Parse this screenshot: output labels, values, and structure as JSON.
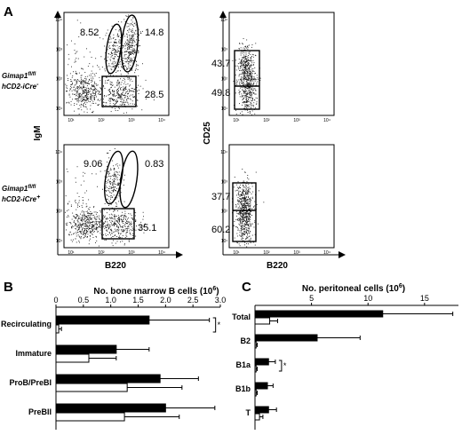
{
  "panel_labels": {
    "A": "A",
    "B": "B",
    "C": "C"
  },
  "genotypes": [
    {
      "line1": "Gimap1",
      "sup": "fl/fl",
      "line2": "hCD2-iCre",
      "sup2": "-"
    },
    {
      "line1": "Gimap1",
      "sup": "fl/fl",
      "line2": "hCD2-iCre",
      "sup2": "+"
    }
  ],
  "flow_axes": {
    "left_y": "IgM",
    "right_y": "CD25",
    "x": "B220"
  },
  "log_ticks": [
    "10¹",
    "10²",
    "10³",
    "10⁴"
  ],
  "flow_panels": [
    {
      "gates": [
        "8.52",
        "14.8",
        "28.5"
      ]
    },
    {
      "gates": [
        "43.7",
        "49.8"
      ]
    },
    {
      "gates": [
        "9.06",
        "0.83",
        "35.1"
      ]
    },
    {
      "gates": [
        "37.7",
        "60.2"
      ]
    }
  ],
  "chart_data": [
    {
      "type": "bar",
      "orientation": "horizontal",
      "title": "No. bone marrow B cells (10⁶)",
      "title_main": "No. bone marrow B cells (10",
      "title_exp": "6",
      "categories": [
        "Recirculating",
        "Immature",
        "ProB/PreBI",
        "PreBII"
      ],
      "xlim": [
        0,
        3.0
      ],
      "ticks": [
        "0",
        "0.5",
        "1.0",
        "1.5",
        "2.0",
        "2.5",
        "3.0"
      ],
      "series": [
        {
          "color": "#000000",
          "values": [
            1.7,
            1.1,
            1.9,
            2.0
          ],
          "errors": [
            1.1,
            0.6,
            0.7,
            0.9
          ]
        },
        {
          "color": "#ffffff",
          "values": [
            0.05,
            0.6,
            1.3,
            1.25
          ],
          "errors": [
            0.05,
            0.5,
            1.0,
            1.0
          ]
        }
      ],
      "significance": [
        {
          "category": "Recirculating",
          "label": "*"
        }
      ]
    },
    {
      "type": "bar",
      "orientation": "horizontal",
      "title": "No. peritoneal cells (10⁶)",
      "title_main": "No. peritoneal cells (10",
      "title_exp": "6",
      "categories": [
        "Total",
        "B2",
        "B1a",
        "B1b",
        "T"
      ],
      "xlim": [
        0,
        18
      ],
      "ticks": [
        "5",
        "10",
        "15"
      ],
      "series": [
        {
          "color": "#000000",
          "values": [
            11.3,
            5.5,
            1.2,
            1.1,
            1.2
          ],
          "errors": [
            6.2,
            3.8,
            0.6,
            0.5,
            0.7
          ]
        },
        {
          "color": "#ffffff",
          "values": [
            1.3,
            0.1,
            0.1,
            0.1,
            0.4
          ],
          "errors": [
            0.7,
            0.1,
            0.1,
            0.1,
            0.3
          ]
        }
      ],
      "significance": [
        {
          "category": "B1a",
          "label": "*"
        }
      ]
    }
  ]
}
